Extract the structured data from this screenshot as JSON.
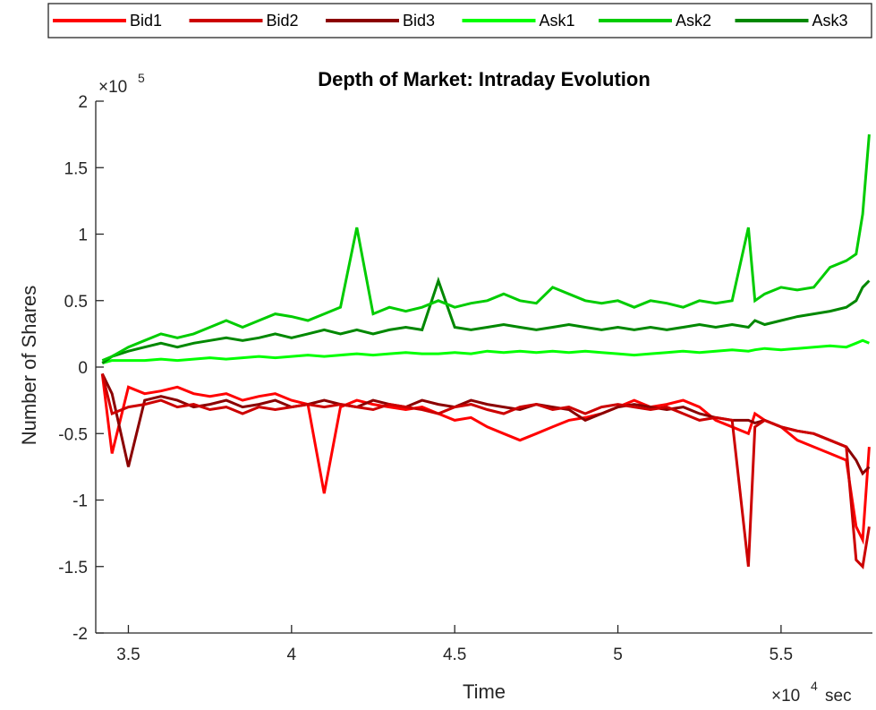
{
  "chart_data": {
    "type": "line",
    "title": "Depth of Market: Intraday Evolution",
    "xlabel": "Time",
    "ylabel": "Number of Shares",
    "x_exponent_label": "×10",
    "x_exponent": "4",
    "x_unit": "sec",
    "y_exponent_label": "×10",
    "y_exponent": "5",
    "xlim": [
      34000,
      57800
    ],
    "ylim": [
      -200000,
      200000
    ],
    "xticks": [
      35000,
      40000,
      45000,
      50000,
      55000
    ],
    "xtick_labels": [
      "3.5",
      "4",
      "4.5",
      "5",
      "5.5"
    ],
    "yticks": [
      -200000,
      -150000,
      -100000,
      -50000,
      0,
      50000,
      100000,
      150000,
      200000
    ],
    "ytick_labels": [
      "-2",
      "-1.5",
      "-1",
      "-0.5",
      "0",
      "0.5",
      "1",
      "1.5",
      "2"
    ],
    "grid": false,
    "legend_position": "top, outside, horizontal",
    "x": [
      34200,
      34500,
      35000,
      35500,
      36000,
      36500,
      37000,
      37500,
      38000,
      38500,
      39000,
      39500,
      40000,
      40500,
      41000,
      41500,
      42000,
      42500,
      43000,
      43500,
      44000,
      44500,
      45000,
      45500,
      46000,
      46500,
      47000,
      47500,
      48000,
      48500,
      49000,
      49500,
      50000,
      50500,
      51000,
      51500,
      52000,
      52500,
      53000,
      53500,
      54000,
      54200,
      54500,
      55000,
      55500,
      56000,
      56500,
      57000,
      57300,
      57500,
      57700
    ],
    "series": [
      {
        "name": "Bid1",
        "color": "#ff0000",
        "values": [
          -5000,
          -65000,
          -15000,
          -20000,
          -18000,
          -15000,
          -20000,
          -22000,
          -20000,
          -25000,
          -22000,
          -20000,
          -25000,
          -28000,
          -95000,
          -30000,
          -25000,
          -28000,
          -30000,
          -32000,
          -30000,
          -35000,
          -40000,
          -38000,
          -45000,
          -50000,
          -55000,
          -50000,
          -45000,
          -40000,
          -38000,
          -35000,
          -30000,
          -25000,
          -30000,
          -28000,
          -25000,
          -30000,
          -40000,
          -45000,
          -50000,
          -35000,
          -40000,
          -45000,
          -55000,
          -60000,
          -65000,
          -70000,
          -120000,
          -130000,
          -60000
        ]
      },
      {
        "name": "Bid2",
        "color": "#cc0000",
        "values": [
          -5000,
          -35000,
          -30000,
          -28000,
          -25000,
          -30000,
          -28000,
          -32000,
          -30000,
          -35000,
          -30000,
          -32000,
          -30000,
          -28000,
          -30000,
          -28000,
          -30000,
          -32000,
          -28000,
          -30000,
          -32000,
          -35000,
          -30000,
          -28000,
          -32000,
          -35000,
          -30000,
          -28000,
          -32000,
          -30000,
          -35000,
          -30000,
          -28000,
          -30000,
          -32000,
          -30000,
          -35000,
          -40000,
          -38000,
          -40000,
          -150000,
          -45000,
          -40000,
          -45000,
          -48000,
          -50000,
          -55000,
          -60000,
          -145000,
          -150000,
          -120000
        ]
      },
      {
        "name": "Bid3",
        "color": "#8b0000",
        "values": [
          -5000,
          -20000,
          -75000,
          -25000,
          -22000,
          -25000,
          -30000,
          -28000,
          -25000,
          -30000,
          -28000,
          -25000,
          -30000,
          -28000,
          -25000,
          -28000,
          -30000,
          -25000,
          -28000,
          -30000,
          -25000,
          -28000,
          -30000,
          -25000,
          -28000,
          -30000,
          -32000,
          -28000,
          -30000,
          -32000,
          -40000,
          -35000,
          -30000,
          -28000,
          -30000,
          -32000,
          -30000,
          -35000,
          -38000,
          -40000,
          -40000,
          -42000,
          -40000,
          -45000,
          -48000,
          -50000,
          -55000,
          -60000,
          -70000,
          -80000,
          -75000
        ]
      },
      {
        "name": "Ask1",
        "color": "#00ff00",
        "values": [
          3000,
          5000,
          5000,
          5000,
          6000,
          5000,
          6000,
          7000,
          6000,
          7000,
          8000,
          7000,
          8000,
          9000,
          8000,
          9000,
          10000,
          9000,
          10000,
          11000,
          10000,
          10000,
          11000,
          10000,
          12000,
          11000,
          12000,
          11000,
          12000,
          11000,
          12000,
          11000,
          10000,
          9000,
          10000,
          11000,
          12000,
          11000,
          12000,
          13000,
          12000,
          13000,
          14000,
          13000,
          14000,
          15000,
          16000,
          15000,
          18000,
          20000,
          18000
        ]
      },
      {
        "name": "Ask2",
        "color": "#00cc00",
        "values": [
          5000,
          8000,
          15000,
          20000,
          25000,
          22000,
          25000,
          30000,
          35000,
          30000,
          35000,
          40000,
          38000,
          35000,
          40000,
          45000,
          105000,
          40000,
          45000,
          42000,
          45000,
          50000,
          45000,
          48000,
          50000,
          55000,
          50000,
          48000,
          60000,
          55000,
          50000,
          48000,
          50000,
          45000,
          50000,
          48000,
          45000,
          50000,
          48000,
          50000,
          105000,
          50000,
          55000,
          60000,
          58000,
          60000,
          75000,
          80000,
          85000,
          115000,
          175000
        ]
      },
      {
        "name": "Ask3",
        "color": "#008800",
        "values": [
          3000,
          8000,
          12000,
          15000,
          18000,
          15000,
          18000,
          20000,
          22000,
          20000,
          22000,
          25000,
          22000,
          25000,
          28000,
          25000,
          28000,
          25000,
          28000,
          30000,
          28000,
          65000,
          30000,
          28000,
          30000,
          32000,
          30000,
          28000,
          30000,
          32000,
          30000,
          28000,
          30000,
          28000,
          30000,
          28000,
          30000,
          32000,
          30000,
          32000,
          30000,
          35000,
          32000,
          35000,
          38000,
          40000,
          42000,
          45000,
          50000,
          60000,
          65000
        ]
      }
    ]
  }
}
